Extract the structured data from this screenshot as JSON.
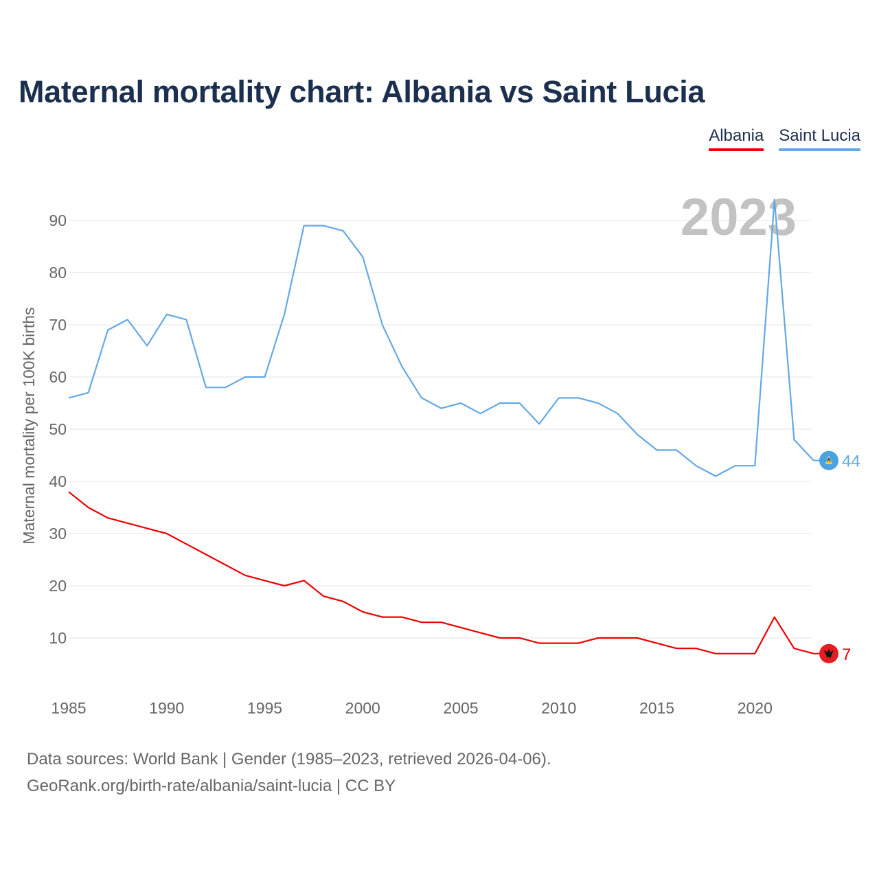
{
  "title": "Maternal mortality chart: Albania vs Saint Lucia",
  "legend": [
    {
      "label": "Albania",
      "color": "#ee0000"
    },
    {
      "label": "Saint Lucia",
      "color": "#62a8e5"
    }
  ],
  "sources": {
    "line1": "Data sources: World Bank | Gender (1985–2023, retrieved 2026-04-06).",
    "line2": "GeoRank.org/birth-rate/albania/saint-lucia | CC BY"
  },
  "chart_data": {
    "type": "line",
    "title": "Maternal mortality chart: Albania vs Saint Lucia",
    "year_label": "2023",
    "xlabel": "",
    "ylabel": "Maternal mortality per 100K births",
    "xlim": [
      1985,
      2023
    ],
    "ylim": [
      0,
      100
    ],
    "x_ticks": [
      1985,
      1990,
      1995,
      2000,
      2005,
      2010,
      2015,
      2020
    ],
    "y_ticks": [
      10,
      20,
      30,
      40,
      50,
      60,
      70,
      80,
      90
    ],
    "x": [
      1985,
      1986,
      1987,
      1988,
      1989,
      1990,
      1991,
      1992,
      1993,
      1994,
      1995,
      1996,
      1997,
      1998,
      1999,
      2000,
      2001,
      2002,
      2003,
      2004,
      2005,
      2006,
      2007,
      2008,
      2009,
      2010,
      2011,
      2012,
      2013,
      2014,
      2015,
      2016,
      2017,
      2018,
      2019,
      2020,
      2021,
      2022,
      2023
    ],
    "series": [
      {
        "name": "Albania",
        "color": "#ee0000",
        "end_label": "7",
        "flag_icon": "albania-flag-icon",
        "values": [
          38,
          35,
          33,
          32,
          31,
          30,
          28,
          26,
          24,
          22,
          21,
          20,
          21,
          18,
          17,
          15,
          14,
          14,
          13,
          13,
          12,
          11,
          10,
          10,
          9,
          9,
          9,
          10,
          10,
          10,
          9,
          8,
          8,
          7,
          7,
          7,
          14,
          8,
          7
        ]
      },
      {
        "name": "Saint Lucia",
        "color": "#62a8e5",
        "end_label": "44",
        "flag_icon": "saint-lucia-flag-icon",
        "values": [
          56,
          57,
          69,
          71,
          66,
          72,
          71,
          58,
          58,
          60,
          60,
          72,
          89,
          89,
          88,
          83,
          70,
          62,
          56,
          54,
          55,
          53,
          55,
          55,
          51,
          56,
          56,
          55,
          53,
          49,
          46,
          46,
          43,
          41,
          43,
          43,
          94,
          48,
          44
        ]
      }
    ]
  }
}
